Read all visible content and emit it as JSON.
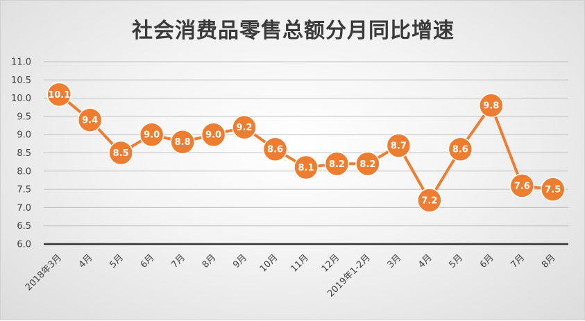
{
  "chart_data": {
    "type": "line",
    "title": "社会消费品零售总额分月同比增速",
    "xlabel": "",
    "ylabel": "",
    "categories": [
      "2018年3月",
      "4月",
      "5月",
      "6月",
      "7月",
      "8月",
      "9月",
      "10月",
      "11月",
      "12月",
      "2019年1-2月",
      "3月",
      "4月",
      "5月",
      "6月",
      "7月",
      "8月"
    ],
    "series": [
      {
        "values": [
          10.1,
          9.4,
          8.5,
          9.0,
          8.8,
          9.0,
          9.2,
          8.6,
          8.1,
          8.2,
          8.2,
          8.7,
          7.2,
          8.6,
          9.8,
          7.6,
          7.5
        ],
        "value_labels": [
          "10.1",
          "9.4",
          "8.5",
          "9.0",
          "8.8",
          "9.0",
          "9.2",
          "8.6",
          "8.1",
          "8.2",
          "8.2",
          "8.7",
          "7.2",
          "8.6",
          "9.8",
          "7.6",
          "7.5"
        ]
      }
    ],
    "ylim": [
      6.0,
      11.0
    ],
    "yticks": [
      "6.0",
      "6.5",
      "7.0",
      "7.5",
      "8.0",
      "8.5",
      "9.0",
      "9.5",
      "10.0",
      "10.5",
      "11.0"
    ],
    "grid": true,
    "legend": "none",
    "colors": {
      "series": "#ED7D31",
      "grid": "#bfbfbf",
      "axis": "#333333",
      "label_text": "#ffffff"
    }
  }
}
